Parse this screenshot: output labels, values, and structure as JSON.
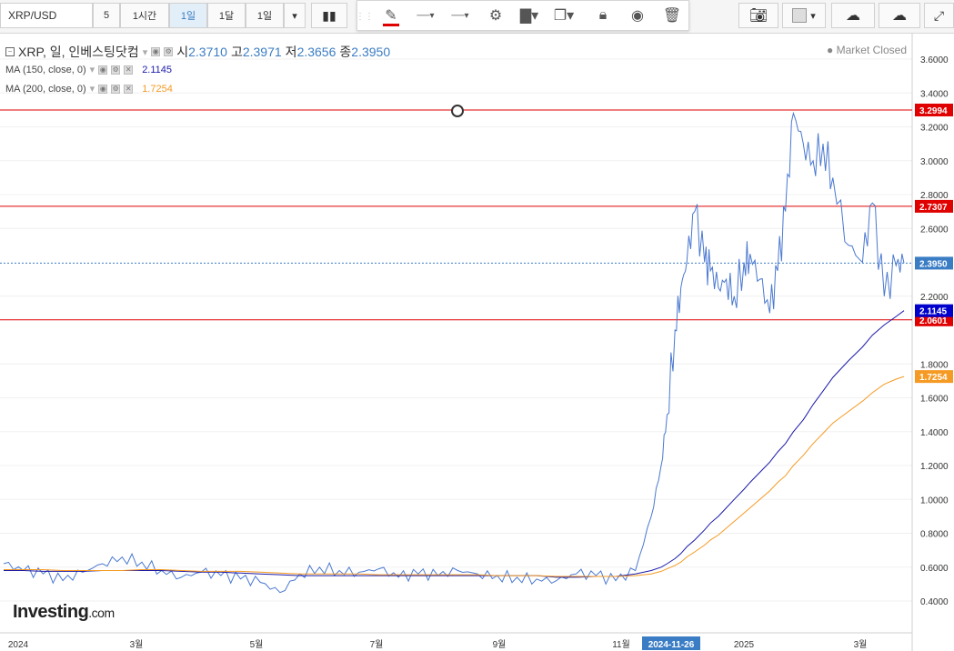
{
  "toolbar": {
    "symbol": "XRP/USD",
    "intervals": [
      "5",
      "1시간",
      "1일",
      "1달",
      "1일"
    ],
    "active_interval": "1일"
  },
  "legend": {
    "title": "XRP, 일, 인베스팅닷컴",
    "open_label": "시",
    "open": "2.3710",
    "high_label": "고",
    "high": "2.3971",
    "low_label": "저",
    "low": "2.3656",
    "close_label": "종",
    "close": "2.3950",
    "ma150_label": "MA (150, close, 0)",
    "ma150_value": "2.1145",
    "ma200_label": "MA (200, close, 0)",
    "ma200_value": "1.7254"
  },
  "market_status": "Market Closed",
  "logo": {
    "name": "Investing",
    "suffix": ".com"
  },
  "colors": {
    "price": "#4a78d0",
    "ma150": "#1a1aa8",
    "ma200": "#f59a23",
    "hline": "#e00000",
    "current": "#3b7dc4",
    "ma150_tag": "#0000cc",
    "ma200_tag": "#f59a23",
    "hline_tag": "#e00000"
  },
  "chart_data": {
    "type": "line",
    "x_tick_labels": [
      "2024",
      "3월",
      "5월",
      "7월",
      "9월",
      "11월",
      "2024-11-26",
      "2025",
      "3월"
    ],
    "y_tick_labels": [
      "0.4000",
      "0.6000",
      "0.8000",
      "1.0000",
      "1.2000",
      "1.4000",
      "1.6000",
      "1.8000",
      "2.2000",
      "2.6000",
      "2.8000",
      "3.0000",
      "3.2000",
      "3.4000",
      "3.6000"
    ],
    "ylim": [
      0.2,
      3.7
    ],
    "horizontal_lines": [
      3.2994,
      2.7307,
      2.0601
    ],
    "price_tags": {
      "current": "2.3950",
      "ma150": "2.1145",
      "ma200": "1.7254",
      "lines": [
        "3.2994",
        "2.7307",
        "2.0601"
      ]
    },
    "x": [
      0,
      10,
      20,
      30,
      40,
      50,
      60,
      70,
      80,
      90,
      100,
      110,
      120,
      130,
      140,
      150,
      160,
      170,
      180,
      190,
      200,
      210,
      220,
      230,
      240,
      250,
      260,
      270,
      280,
      290,
      300,
      310,
      320,
      328,
      333,
      336,
      340,
      343,
      346,
      350,
      355,
      358,
      362,
      366,
      370,
      375,
      378,
      383,
      388,
      392,
      396,
      400,
      405,
      410,
      415,
      420,
      428,
      435,
      440,
      446,
      452,
      456
    ],
    "series": [
      {
        "name": "XRP",
        "values": [
          0.62,
          0.58,
          0.56,
          0.52,
          0.57,
          0.62,
          0.66,
          0.63,
          0.58,
          0.54,
          0.57,
          0.55,
          0.53,
          0.51,
          0.45,
          0.56,
          0.6,
          0.58,
          0.57,
          0.59,
          0.54,
          0.56,
          0.55,
          0.58,
          0.56,
          0.55,
          0.54,
          0.53,
          0.52,
          0.56,
          0.55,
          0.52,
          0.58,
          0.9,
          1.2,
          1.5,
          2.0,
          2.25,
          2.4,
          2.7,
          2.4,
          2.35,
          2.25,
          2.3,
          2.2,
          2.4,
          2.45,
          2.3,
          2.1,
          2.35,
          2.7,
          3.28,
          3.1,
          3.0,
          3.1,
          2.9,
          2.5,
          2.4,
          2.75,
          2.2,
          2.38,
          2.395
        ]
      },
      {
        "name": "MA (150, close, 0)",
        "values": [
          0.58,
          0.58,
          0.575,
          0.575,
          0.575,
          0.58,
          0.58,
          0.58,
          0.58,
          0.575,
          0.57,
          0.57,
          0.565,
          0.56,
          0.555,
          0.55,
          0.55,
          0.55,
          0.55,
          0.55,
          0.55,
          0.55,
          0.55,
          0.55,
          0.55,
          0.55,
          0.55,
          0.55,
          0.54,
          0.54,
          0.545,
          0.545,
          0.56,
          0.58,
          0.6,
          0.62,
          0.65,
          0.68,
          0.72,
          0.76,
          0.82,
          0.86,
          0.9,
          0.95,
          1.0,
          1.06,
          1.1,
          1.16,
          1.22,
          1.28,
          1.33,
          1.4,
          1.47,
          1.56,
          1.64,
          1.72,
          1.82,
          1.9,
          1.97,
          2.03,
          2.08,
          2.1145
        ]
      },
      {
        "name": "MA (200, close, 0)",
        "values": [
          0.585,
          0.585,
          0.585,
          0.58,
          0.58,
          0.58,
          0.58,
          0.585,
          0.585,
          0.58,
          0.575,
          0.575,
          0.575,
          0.57,
          0.565,
          0.56,
          0.56,
          0.56,
          0.56,
          0.555,
          0.555,
          0.555,
          0.555,
          0.555,
          0.555,
          0.55,
          0.55,
          0.55,
          0.545,
          0.545,
          0.545,
          0.545,
          0.55,
          0.56,
          0.575,
          0.59,
          0.61,
          0.63,
          0.66,
          0.69,
          0.73,
          0.76,
          0.79,
          0.83,
          0.87,
          0.92,
          0.95,
          1.0,
          1.05,
          1.1,
          1.14,
          1.2,
          1.26,
          1.33,
          1.39,
          1.45,
          1.52,
          1.58,
          1.63,
          1.68,
          1.71,
          1.7254
        ]
      }
    ]
  }
}
